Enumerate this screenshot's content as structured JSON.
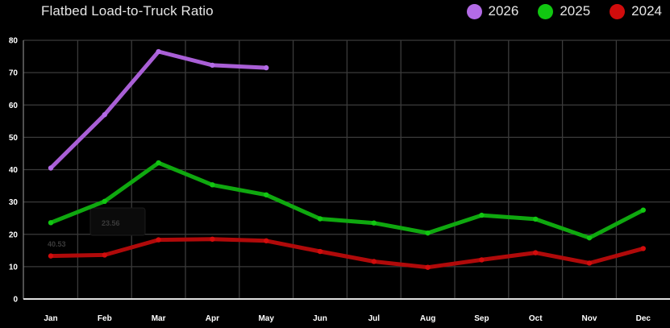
{
  "chart_data": {
    "type": "line",
    "title": "Flatbed Load-to-Truck Ratio",
    "xlabel": "",
    "ylabel": "",
    "categories": [
      "Jan",
      "Feb",
      "Mar",
      "Apr",
      "May",
      "Jun",
      "Jul",
      "Aug",
      "Sep",
      "Oct",
      "Nov",
      "Dec"
    ],
    "ylim": [
      0,
      80
    ],
    "yticks": [
      0,
      10,
      20,
      30,
      40,
      50,
      60,
      70,
      80
    ],
    "grid": true,
    "legend_position": "top-right",
    "series": [
      {
        "name": "2026",
        "color": "#a95fd6",
        "legend_color": "#b36be6",
        "values": [
          40.5,
          57.0,
          76.5,
          72.3,
          71.5,
          null,
          null,
          null,
          null,
          null,
          null,
          null
        ]
      },
      {
        "name": "2025",
        "color": "#0fa80f",
        "legend_color": "#11c711",
        "values": [
          23.6,
          30.2,
          42.1,
          35.3,
          32.2,
          24.8,
          23.5,
          20.4,
          25.9,
          24.7,
          18.9,
          27.5
        ]
      },
      {
        "name": "2024",
        "color": "#b00a0a",
        "legend_color": "#d10c0c",
        "values": [
          13.3,
          13.6,
          18.3,
          18.5,
          18.0,
          14.7,
          11.6,
          9.8,
          12.1,
          14.3,
          11.1,
          15.6
        ]
      }
    ],
    "annotations": [
      "23.56",
      "40.53"
    ]
  }
}
